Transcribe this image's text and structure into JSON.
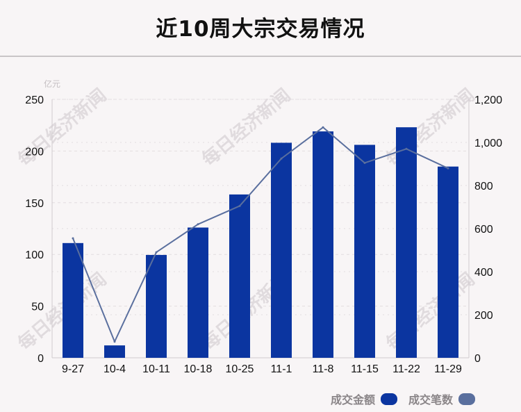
{
  "header": {
    "title": "近10周大宗交易情况"
  },
  "watermark": "每日经济新闻",
  "colors": {
    "bar": "#0b35a0",
    "line": "#5a6f9e",
    "grid": "#e2dde0",
    "axis": "#cfcacd"
  },
  "legend": {
    "bar_label": "成交金额",
    "line_label": "成交笔数"
  },
  "chart_data": {
    "type": "bar",
    "title": "近10周大宗交易情况",
    "categories": [
      "9-27",
      "10-4",
      "10-11",
      "10-18",
      "10-25",
      "11-1",
      "11-8",
      "11-15",
      "11-22",
      "11-29"
    ],
    "series": [
      {
        "name": "成交金额",
        "type": "bar",
        "axis": "left",
        "values": [
          111,
          12,
          99.5,
          126,
          158,
          208,
          219,
          206,
          223,
          185
        ]
      },
      {
        "name": "成交笔数",
        "type": "line",
        "axis": "right",
        "values": [
          555,
          75,
          490,
          620,
          705,
          925,
          1070,
          905,
          970,
          880
        ]
      }
    ],
    "y_left": {
      "unit": "亿元",
      "ylim": [
        0,
        250
      ],
      "ticks": [
        "0",
        "50",
        "100",
        "150",
        "200",
        "250"
      ]
    },
    "y_right": {
      "ylim": [
        0,
        1200
      ],
      "ticks": [
        "0",
        "200",
        "400",
        "600",
        "800",
        "1,000",
        "1,200"
      ]
    },
    "grid": true,
    "legend_position": "bottom-right"
  }
}
